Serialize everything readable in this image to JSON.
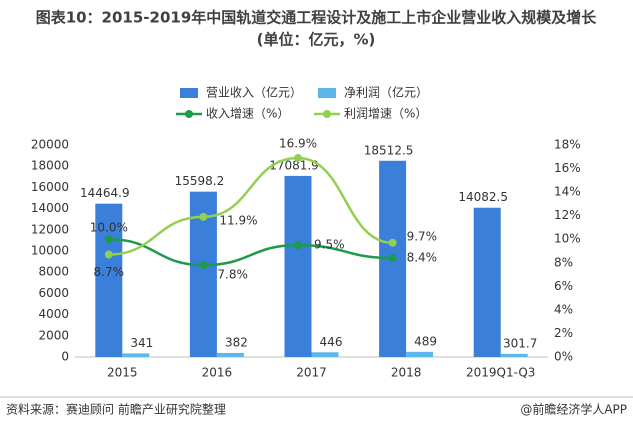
{
  "chart_data": {
    "type": "bar-line",
    "title": "图表10：2015-2019年中国轨道交通工程设计及施工上市企业营业收入规模及增长",
    "subtitle": "(单位：亿元，%)",
    "categories": [
      "2015",
      "2016",
      "2017",
      "2018",
      "2019Q1-Q3"
    ],
    "series": [
      {
        "name": "营业收入（亿元）",
        "color": "#3a7fd9",
        "kind": "bar",
        "values": [
          14464.9,
          15598.2,
          17081.9,
          18512.5,
          14082.5
        ]
      },
      {
        "name": "净利润（亿元）",
        "color": "#5cb8ea",
        "kind": "bar",
        "values": [
          341,
          382,
          446,
          489,
          301.7
        ]
      },
      {
        "name": "收入增速（%）",
        "color": "#1e9a4c",
        "kind": "line",
        "axis": "y2",
        "values": [
          10.0,
          7.8,
          9.5,
          8.4,
          null
        ],
        "value_labels": [
          "10.0%",
          "7.8%",
          "9.5%",
          "8.4%",
          null
        ]
      },
      {
        "name": "利润增速（%）",
        "color": "#92d050",
        "kind": "line",
        "axis": "y2",
        "values": [
          8.7,
          11.9,
          16.9,
          9.7,
          null
        ],
        "value_labels": [
          "8.7%",
          "11.9%",
          "16.9%",
          "9.7%",
          null
        ]
      }
    ],
    "ylim": [
      0,
      20000
    ],
    "yticks": [
      0,
      2000,
      4000,
      6000,
      8000,
      10000,
      12000,
      14000,
      16000,
      18000,
      20000
    ],
    "y2lim": [
      0,
      18
    ],
    "y2ticks": [
      {
        "value": 0,
        "label": "0%"
      },
      {
        "value": 2,
        "label": "2%"
      },
      {
        "value": 4,
        "label": "4%"
      },
      {
        "value": 6,
        "label": "6%"
      },
      {
        "value": 8,
        "label": "8%"
      },
      {
        "value": 10,
        "label": "10%"
      },
      {
        "value": 12,
        "label": "12%"
      },
      {
        "value": 14,
        "label": "14%"
      },
      {
        "value": 16,
        "label": "16%"
      },
      {
        "value": 18,
        "label": "18%"
      }
    ],
    "grid": false,
    "legend": "top",
    "source": "资料来源：赛迪顾问 前瞻产业研究院整理",
    "credit": "@前瞻经济学人APP"
  }
}
